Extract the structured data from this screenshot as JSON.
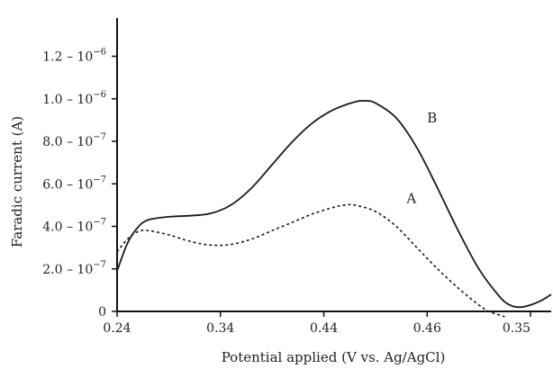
{
  "chart_data": {
    "type": "line",
    "xlabel": "Potential applied (V vs. Ag/AgCl)",
    "ylabel": "Faradic current (A)",
    "x_ticks": [
      "0.24",
      "0.34",
      "0.44",
      "0.46",
      "0.35"
    ],
    "y_ticks": [
      {
        "value": 0,
        "base": "0",
        "exp": ""
      },
      {
        "value": 2e-07,
        "base": "2.0 – 10",
        "exp": "−7"
      },
      {
        "value": 4e-07,
        "base": "4.0 – 10",
        "exp": "−7"
      },
      {
        "value": 6e-07,
        "base": "6.0 – 10",
        "exp": "−7"
      },
      {
        "value": 8e-07,
        "base": "8.0 – 10",
        "exp": "−7"
      },
      {
        "value": 1e-06,
        "base": "1.0 – 10",
        "exp": "−6"
      },
      {
        "value": 1.2e-06,
        "base": "1.2 – 10",
        "exp": "−6"
      }
    ],
    "ylim": [
      0,
      1.38e-06
    ],
    "x_domain": [
      0,
      4.2
    ],
    "grid": false,
    "series": [
      {
        "name": "A",
        "style": "dashed",
        "color": "#1a1a1a",
        "points": [
          {
            "x": 0.0,
            "y": 2.8e-07
          },
          {
            "x": 0.1,
            "y": 3.4e-07
          },
          {
            "x": 0.2,
            "y": 3.75e-07
          },
          {
            "x": 0.3,
            "y": 3.8e-07
          },
          {
            "x": 0.5,
            "y": 3.6e-07
          },
          {
            "x": 0.7,
            "y": 3.3e-07
          },
          {
            "x": 0.9,
            "y": 3.12e-07
          },
          {
            "x": 1.1,
            "y": 3.15e-07
          },
          {
            "x": 1.3,
            "y": 3.4e-07
          },
          {
            "x": 1.5,
            "y": 3.8e-07
          },
          {
            "x": 1.7,
            "y": 4.2e-07
          },
          {
            "x": 1.9,
            "y": 4.6e-07
          },
          {
            "x": 2.1,
            "y": 4.9e-07
          },
          {
            "x": 2.2,
            "y": 5e-07
          },
          {
            "x": 2.3,
            "y": 5e-07
          },
          {
            "x": 2.5,
            "y": 4.7e-07
          },
          {
            "x": 2.7,
            "y": 4e-07
          },
          {
            "x": 2.9,
            "y": 3e-07
          },
          {
            "x": 3.1,
            "y": 2e-07
          },
          {
            "x": 3.3,
            "y": 1.1e-07
          },
          {
            "x": 3.5,
            "y": 3e-08
          },
          {
            "x": 3.6,
            "y": 0.0
          },
          {
            "x": 3.75,
            "y": -2.5e-08
          }
        ]
      },
      {
        "name": "B",
        "style": "solid",
        "color": "#1a1a1a",
        "points": [
          {
            "x": 0.0,
            "y": 1.9e-07
          },
          {
            "x": 0.1,
            "y": 3.2e-07
          },
          {
            "x": 0.2,
            "y": 3.95e-07
          },
          {
            "x": 0.3,
            "y": 4.3e-07
          },
          {
            "x": 0.5,
            "y": 4.45e-07
          },
          {
            "x": 0.7,
            "y": 4.5e-07
          },
          {
            "x": 0.9,
            "y": 4.6e-07
          },
          {
            "x": 1.1,
            "y": 5e-07
          },
          {
            "x": 1.3,
            "y": 5.8e-07
          },
          {
            "x": 1.5,
            "y": 6.9e-07
          },
          {
            "x": 1.7,
            "y": 8e-07
          },
          {
            "x": 1.9,
            "y": 8.9e-07
          },
          {
            "x": 2.1,
            "y": 9.5e-07
          },
          {
            "x": 2.3,
            "y": 9.85e-07
          },
          {
            "x": 2.4,
            "y": 9.9e-07
          },
          {
            "x": 2.5,
            "y": 9.8e-07
          },
          {
            "x": 2.7,
            "y": 9.1e-07
          },
          {
            "x": 2.9,
            "y": 7.7e-07
          },
          {
            "x": 3.1,
            "y": 5.8e-07
          },
          {
            "x": 3.3,
            "y": 3.8e-07
          },
          {
            "x": 3.5,
            "y": 2e-07
          },
          {
            "x": 3.7,
            "y": 7e-08
          },
          {
            "x": 3.8,
            "y": 3e-08
          },
          {
            "x": 3.9,
            "y": 2e-08
          },
          {
            "x": 4.0,
            "y": 3e-08
          },
          {
            "x": 4.1,
            "y": 5e-08
          },
          {
            "x": 4.2,
            "y": 8e-08
          }
        ]
      }
    ],
    "annotations": [
      {
        "text": "A",
        "x": 2.8,
        "y": 5.1e-07
      },
      {
        "text": "B",
        "x": 3.0,
        "y": 8.9e-07
      }
    ]
  }
}
